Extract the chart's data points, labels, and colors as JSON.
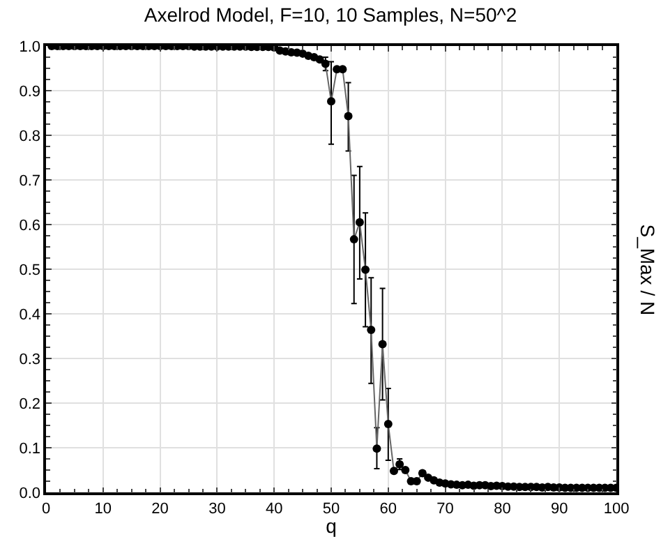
{
  "chart_data": {
    "type": "line",
    "title": "Axelrod Model, F=10, 10 Samples, N=50^2",
    "xlabel": "q",
    "ylabel": "S_Max / N",
    "x": [
      1,
      2,
      3,
      4,
      5,
      6,
      7,
      8,
      9,
      10,
      11,
      12,
      13,
      14,
      15,
      16,
      17,
      18,
      19,
      20,
      21,
      22,
      23,
      24,
      25,
      26,
      27,
      28,
      29,
      30,
      31,
      32,
      33,
      34,
      35,
      36,
      37,
      38,
      39,
      40,
      41,
      42,
      43,
      44,
      45,
      46,
      47,
      48,
      49,
      50,
      51,
      52,
      53,
      54,
      55,
      56,
      57,
      58,
      59,
      60,
      61,
      62,
      63,
      64,
      65,
      66,
      67,
      68,
      69,
      70,
      71,
      72,
      73,
      74,
      75,
      76,
      77,
      78,
      79,
      80,
      81,
      82,
      83,
      84,
      85,
      86,
      87,
      88,
      89,
      90,
      91,
      92,
      93,
      94,
      95,
      96,
      97,
      98,
      99,
      100
    ],
    "series": [
      {
        "color": "#000000",
        "values": [
          1.0,
          1.0,
          1.0,
          1.0,
          1.0,
          1.0,
          1.0,
          1.0,
          1.0,
          1.0,
          1.0,
          1.0,
          1.0,
          1.0,
          1.0,
          1.0,
          1.0,
          1.0,
          1.0,
          1.0,
          1.0,
          1.0,
          1.0,
          1.0,
          1.0,
          0.999,
          0.999,
          0.999,
          0.999,
          0.999,
          0.999,
          0.999,
          0.999,
          0.999,
          0.999,
          0.998,
          0.998,
          0.998,
          0.998,
          0.997,
          0.99,
          0.988,
          0.986,
          0.985,
          0.983,
          0.978,
          0.975,
          0.97,
          0.96,
          0.876,
          0.948,
          0.948,
          0.843,
          0.567,
          0.605,
          0.499,
          0.364,
          0.098,
          0.332,
          0.153,
          0.048,
          0.063,
          0.05,
          0.025,
          0.025,
          0.043,
          0.033,
          0.027,
          0.022,
          0.02,
          0.018,
          0.017,
          0.016,
          0.017,
          0.015,
          0.016,
          0.016,
          0.014,
          0.015,
          0.014,
          0.013,
          0.013,
          0.012,
          0.012,
          0.012,
          0.012,
          0.011,
          0.012,
          0.011,
          0.011,
          0.01,
          0.01,
          0.01,
          0.01,
          0.01,
          0.01,
          0.01,
          0.01,
          0.01,
          0.01
        ],
        "errors": [
          null,
          null,
          null,
          null,
          null,
          null,
          null,
          null,
          null,
          null,
          null,
          null,
          null,
          null,
          null,
          null,
          null,
          null,
          null,
          null,
          null,
          null,
          null,
          null,
          null,
          null,
          null,
          null,
          null,
          null,
          null,
          null,
          null,
          null,
          null,
          null,
          null,
          null,
          null,
          null,
          null,
          null,
          null,
          null,
          null,
          null,
          null,
          null,
          0.015,
          [
            0.78,
            0.965
          ],
          null,
          null,
          [
            0.765,
            0.918
          ],
          [
            0.423,
            0.71
          ],
          [
            0.478,
            0.73
          ],
          [
            0.371,
            0.626
          ],
          [
            0.244,
            0.481
          ],
          [
            0.053,
            0.145
          ],
          [
            0.207,
            0.457
          ],
          [
            0.072,
            0.233
          ],
          null,
          0.012,
          null,
          null,
          null,
          null,
          null,
          null,
          null,
          null,
          null,
          null,
          null,
          null,
          null,
          null,
          null,
          null,
          null,
          null,
          null,
          null,
          null,
          null,
          null,
          null,
          null,
          null,
          null,
          null,
          null,
          null,
          null,
          null,
          null,
          null,
          null,
          null,
          null,
          null
        ]
      }
    ],
    "xlim": [
      0,
      100
    ],
    "xticks": [
      0,
      10,
      20,
      30,
      40,
      50,
      60,
      70,
      80,
      90,
      100
    ],
    "ylim": [
      0,
      1.0
    ],
    "yticks": [
      {
        "value": 0,
        "label": "0.0"
      },
      0.1,
      0.2,
      0.3,
      0.4,
      0.5,
      0.6,
      0.7,
      0.8,
      0.9,
      {
        "value": 1,
        "label": "1.0"
      }
    ],
    "grid": true,
    "marker": "circle",
    "line_style": "solid"
  }
}
